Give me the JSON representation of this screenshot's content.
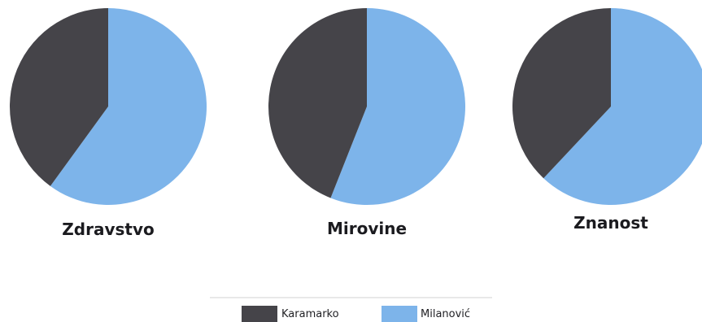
{
  "colors": {
    "karamarko": "#454449",
    "milanovic": "#7db4ea",
    "legend_rule": "#d0d0d0"
  },
  "chart_data": [
    {
      "type": "pie",
      "title": "Zdravstvo",
      "slices": [
        {
          "label": "Karamarko",
          "value": 40
        },
        {
          "label": "Milanović",
          "value": 60
        }
      ]
    },
    {
      "type": "pie",
      "title": "Mirovine",
      "slices": [
        {
          "label": "Karamarko",
          "value": 44
        },
        {
          "label": "Milanović",
          "value": 56
        }
      ]
    },
    {
      "type": "pie",
      "title": "Znanost",
      "slices": [
        {
          "label": "Karamarko",
          "value": 38
        },
        {
          "label": "Milanović",
          "value": 62
        }
      ]
    }
  ],
  "legend": {
    "placement": "bottom-center",
    "items": [
      {
        "label": "Karamarko",
        "color": "#454449"
      },
      {
        "label": "Milanović",
        "color": "#7db4ea"
      }
    ]
  }
}
